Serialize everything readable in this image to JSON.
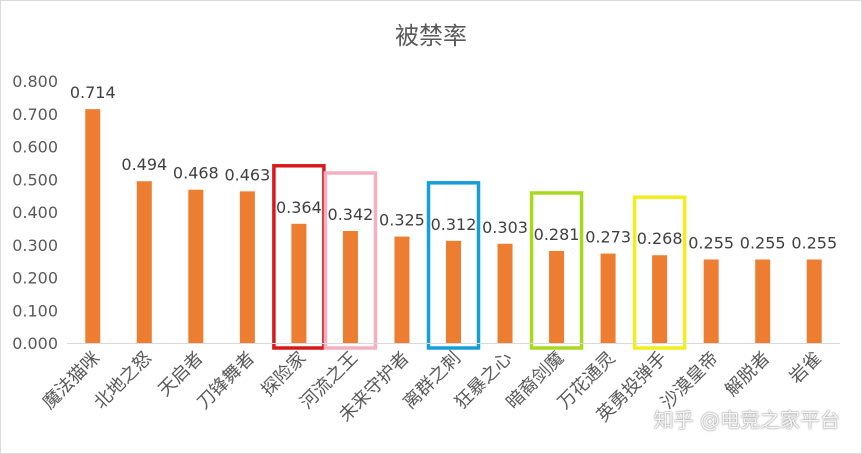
{
  "chart_data": {
    "type": "bar",
    "title": "被禁率",
    "xlabel": "",
    "ylabel": "",
    "ylim": [
      0,
      0.8
    ],
    "y_ticks": [
      "0.000",
      "0.100",
      "0.200",
      "0.300",
      "0.400",
      "0.500",
      "0.600",
      "0.700",
      "0.800"
    ],
    "grid": false,
    "legend": "none",
    "bar_color": "#ED7D31",
    "categories": [
      "魔法猫咪",
      "北地之怒",
      "天启者",
      "刀锋舞者",
      "探险家",
      "河流之王",
      "未来守护者",
      "离群之刺",
      "狂暴之心",
      "暗裔剑魔",
      "万花通灵",
      "英勇投弹手",
      "沙漠皇帝",
      "解脱者",
      "岩雀"
    ],
    "values": [
      0.714,
      0.494,
      0.468,
      0.463,
      0.364,
      0.342,
      0.325,
      0.312,
      0.303,
      0.281,
      0.273,
      0.268,
      0.255,
      0.255,
      0.255
    ],
    "data_labels": [
      "0.714",
      "0.494",
      "0.468",
      "0.463",
      "0.364",
      "0.342",
      "0.325",
      "0.312",
      "0.303",
      "0.281",
      "0.273",
      "0.268",
      "0.255",
      "0.255",
      "0.255"
    ],
    "highlights": [
      {
        "index": 4,
        "color": "#D7191C"
      },
      {
        "index": 5,
        "color": "#F4AFC1"
      },
      {
        "index": 7,
        "color": "#169ED8"
      },
      {
        "index": 9,
        "color": "#A8D920"
      },
      {
        "index": 11,
        "color": "#F2EE1D"
      }
    ]
  },
  "watermark": "知乎 @电竞之家平台"
}
